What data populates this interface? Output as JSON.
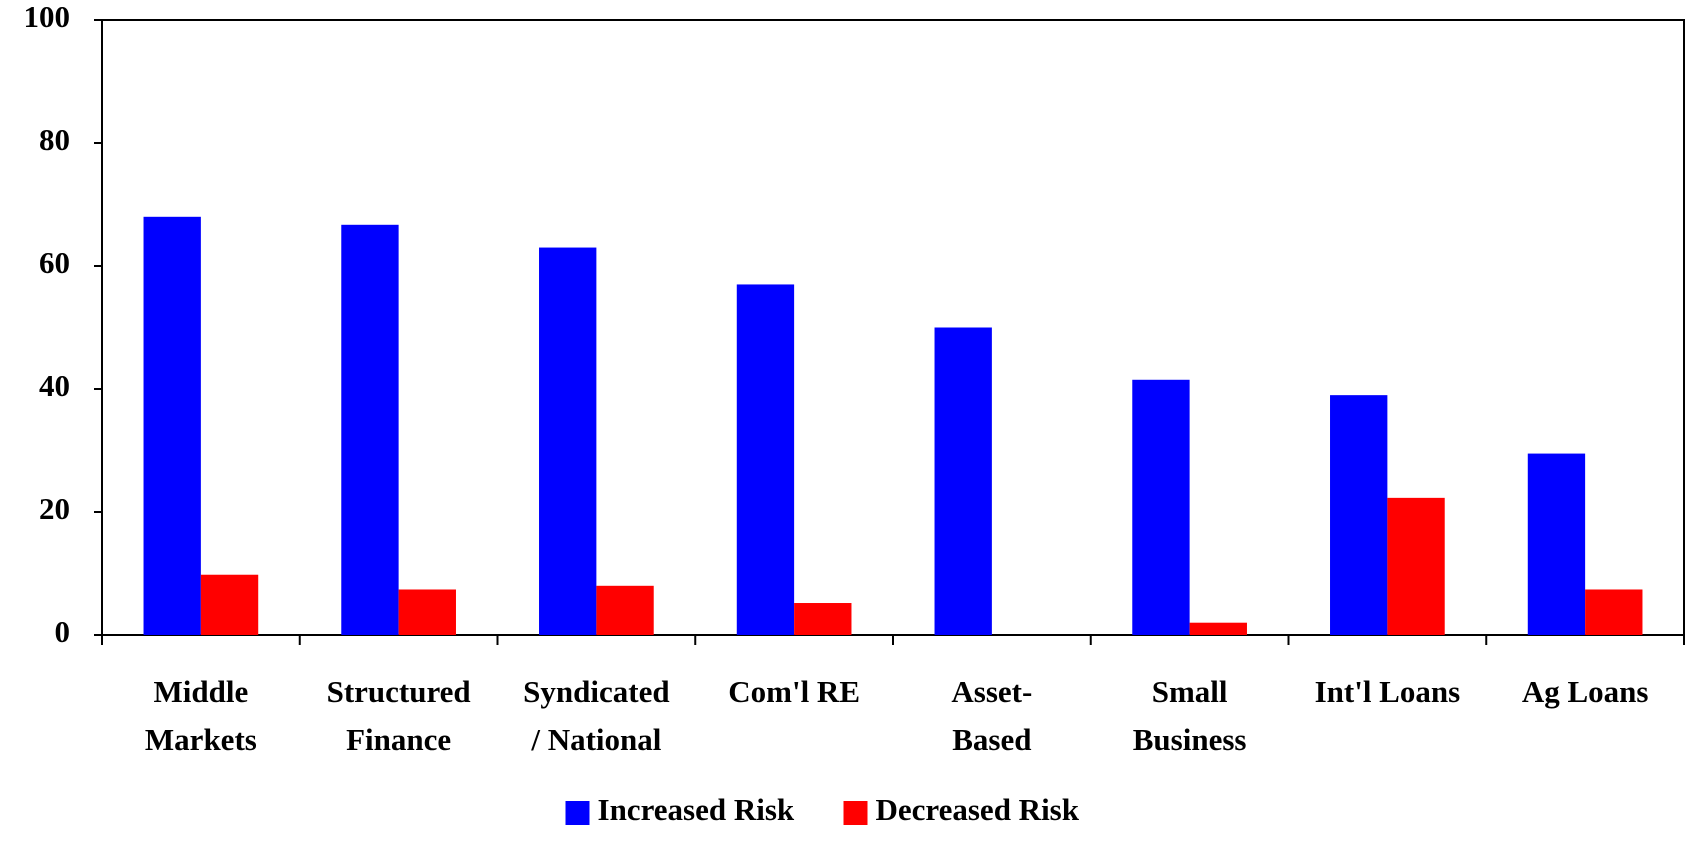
{
  "chart_data": {
    "type": "bar",
    "categories": [
      "Middle\nMarkets",
      "Structured\nFinance",
      "Syndicated\n/ National",
      "Com'l RE",
      "Asset-\nBased",
      "Small\nBusiness",
      "Int'l Loans",
      "Ag Loans"
    ],
    "series": [
      {
        "name": "Increased Risk",
        "color": "#0000ff",
        "values": [
          68,
          66.7,
          63,
          57,
          50,
          41.5,
          39,
          29.5
        ]
      },
      {
        "name": "Decreased Risk",
        "color": "#ff0000",
        "values": [
          9.8,
          7.4,
          8,
          5.2,
          0,
          2,
          22.3,
          7.4
        ]
      }
    ],
    "ylim": [
      0,
      100
    ],
    "yticks": [
      0,
      20,
      40,
      60,
      80,
      100
    ],
    "grid": false,
    "legend": "bottom"
  }
}
